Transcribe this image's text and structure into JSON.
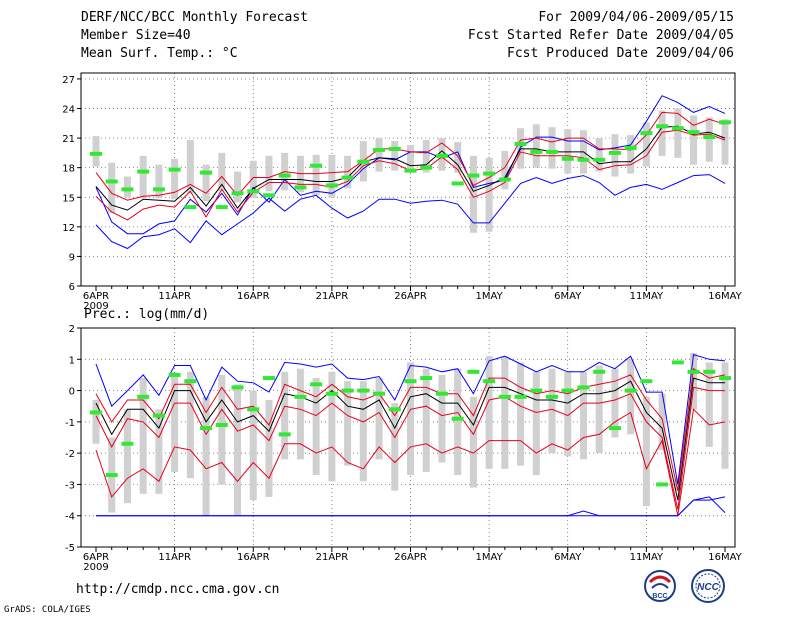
{
  "header": {
    "title": "DERF/NCC/BCC Monthly Forecast",
    "member_size": "Member Size=40",
    "variable": "Mean Surf. Temp.: °C",
    "period": "For 2009/04/06-2009/05/15",
    "refer_date": "Fcst Started Refer Date 2009/04/05",
    "produced_date": "Fcst Produced Date 2009/04/06"
  },
  "precip_title": "Prec.: log(mm/d)",
  "footer": {
    "url": "http://cmdp.ncc.cma.gov.cn",
    "credit": "GrADS: COLA/IGES",
    "logo_bcc": "BCC",
    "logo_ncc": "NCC"
  },
  "colors": {
    "envelope": "#0000ff",
    "spread": "#e8001c",
    "mean": "#000000",
    "box": "#d0d0d0",
    "obs": "#33e833",
    "grid": "#555555"
  },
  "chart_data": [
    {
      "type": "line",
      "title": "Mean Surf. Temp.: °C",
      "x_tick_labels": [
        "6APR",
        "11APR",
        "16APR",
        "21APR",
        "26APR",
        "1MAY",
        "6MAY",
        "11MAY",
        "16MAY"
      ],
      "x_sub_label": "2009",
      "y_ticks": [
        6,
        9,
        12,
        15,
        18,
        21,
        24,
        27
      ],
      "ylim": [
        6,
        27.6
      ],
      "days": 41,
      "series": [
        {
          "name": "max",
          "values": [
            16.0,
            12.5,
            11.3,
            11.3,
            12.3,
            12.6,
            14.8,
            13.5,
            15.4,
            13.2,
            16.0,
            14.5,
            16.8,
            15.2,
            15.6,
            15.4,
            16.3,
            17.9,
            19.0,
            18.8,
            19.6,
            19.6,
            19.0,
            19.6,
            16.0,
            16.4,
            16.7,
            20.1,
            21.1,
            21.1,
            20.7,
            20.7,
            19.8,
            20.0,
            20.3,
            22.7,
            25.3,
            24.6,
            23.6,
            24.2,
            23.5
          ]
        },
        {
          "name": "upper",
          "values": [
            17.5,
            15.4,
            14.7,
            15.1,
            15.2,
            15.5,
            16.3,
            15.4,
            17.1,
            15.2,
            17.0,
            17.0,
            17.6,
            17.4,
            17.4,
            17.5,
            17.6,
            18.7,
            19.9,
            19.9,
            19.6,
            19.5,
            20.5,
            19.2,
            16.2,
            17.0,
            18.0,
            20.8,
            21.0,
            20.6,
            21.0,
            21.0,
            19.9,
            19.9,
            19.8,
            21.3,
            23.6,
            23.5,
            22.3,
            22.9,
            22.4
          ]
        },
        {
          "name": "mean",
          "values": [
            16.1,
            14.2,
            13.7,
            14.8,
            14.7,
            14.6,
            16.0,
            14.1,
            16.3,
            13.9,
            15.9,
            16.8,
            16.8,
            16.8,
            16.6,
            16.6,
            17.0,
            18.6,
            19.0,
            18.9,
            18.2,
            18.3,
            19.7,
            18.3,
            15.6,
            16.2,
            17.0,
            19.9,
            19.9,
            19.6,
            19.6,
            19.6,
            18.4,
            18.6,
            18.6,
            19.9,
            22.1,
            22.2,
            21.4,
            21.6,
            21.0
          ]
        },
        {
          "name": "lower",
          "values": [
            15.1,
            13.5,
            12.7,
            13.8,
            14.2,
            14.0,
            15.6,
            13.0,
            15.8,
            13.5,
            15.5,
            16.5,
            16.5,
            16.3,
            16.3,
            16.0,
            16.6,
            18.2,
            18.7,
            18.4,
            17.7,
            17.9,
            19.1,
            17.8,
            15.0,
            15.6,
            16.5,
            19.6,
            19.2,
            19.2,
            19.2,
            19.0,
            17.8,
            18.2,
            18.3,
            19.2,
            21.6,
            21.8,
            21.3,
            21.4,
            20.8
          ]
        },
        {
          "name": "min",
          "values": [
            12.2,
            10.5,
            9.8,
            11.0,
            11.2,
            11.8,
            10.4,
            12.6,
            11.2,
            12.3,
            13.4,
            14.9,
            13.6,
            14.8,
            15.2,
            13.9,
            12.9,
            13.6,
            14.8,
            14.8,
            14.4,
            14.6,
            14.7,
            14.3,
            12.4,
            12.4,
            14.4,
            16.4,
            17.0,
            16.4,
            16.9,
            17.2,
            16.5,
            15.2,
            16.0,
            16.3,
            15.8,
            16.5,
            17.2,
            17.3,
            16.4
          ]
        }
      ],
      "boxes": {
        "low": [
          18.1,
          13.4,
          15.0,
          14.9,
          14.9,
          14.8,
          15.4,
          14.6,
          15.6,
          14.5,
          14.9,
          15.6,
          15.7,
          15.5,
          15.2,
          15.0,
          15.9,
          16.6,
          17.6,
          17.7,
          17.6,
          17.5,
          17.7,
          17.5,
          11.4,
          11.5,
          15.8,
          17.9,
          18.0,
          17.9,
          17.4,
          17.4,
          17.6,
          17.1,
          17.4,
          18.1,
          19.2,
          19.0,
          18.3,
          18.6,
          18.3
        ],
        "high": [
          21.2,
          18.5,
          17.1,
          19.2,
          18.3,
          18.9,
          20.8,
          18.3,
          19.5,
          17.6,
          18.7,
          19.2,
          19.5,
          19.2,
          19.3,
          19.3,
          19.2,
          20.7,
          21.0,
          20.7,
          20.3,
          20.8,
          21.0,
          20.6,
          19.2,
          19.0,
          19.7,
          22.0,
          22.4,
          22.1,
          21.9,
          21.8,
          21.0,
          21.4,
          21.3,
          22.6,
          23.8,
          24.0,
          23.3,
          23.1,
          22.9
        ]
      },
      "observed": [
        19.4,
        16.6,
        15.8,
        17.6,
        15.8,
        17.8,
        14.0,
        17.5,
        14.0,
        15.4,
        15.6,
        15.2,
        17.2,
        16.0,
        18.2,
        16.2,
        17.0,
        18.6,
        19.8,
        19.9,
        17.7,
        18.0,
        19.2,
        16.4,
        17.2,
        17.4,
        16.8,
        20.4,
        19.6,
        19.6,
        18.9,
        18.8,
        18.8,
        19.5,
        20.0,
        21.5,
        22.2,
        22.0,
        21.6,
        21.1,
        22.6
      ]
    },
    {
      "type": "line",
      "title": "Prec.: log(mm/d)",
      "x_tick_labels": [
        "6APR",
        "11APR",
        "16APR",
        "21APR",
        "26APR",
        "1MAY",
        "6MAY",
        "11MAY",
        "16MAY"
      ],
      "x_sub_label": "2009",
      "y_ticks": [
        -5,
        -4,
        -3,
        -2,
        -1,
        0,
        1,
        2
      ],
      "ylim": [
        -5,
        2
      ],
      "days": 41,
      "series": [
        {
          "name": "max",
          "values": [
            0.85,
            -0.5,
            0.0,
            0.5,
            -0.15,
            0.8,
            0.8,
            -0.3,
            0.75,
            0.3,
            0.25,
            -0.05,
            0.9,
            0.85,
            0.75,
            0.85,
            0.4,
            0.35,
            0.45,
            -0.3,
            0.8,
            0.75,
            0.6,
            0.7,
            -0.1,
            0.95,
            1.1,
            0.85,
            0.6,
            0.8,
            0.6,
            0.6,
            0.9,
            0.7,
            1.1,
            -0.05,
            -0.05,
            -3.0,
            1.15,
            1.0,
            0.95
          ]
        },
        {
          "name": "upper",
          "values": [
            -0.1,
            -1.0,
            -0.3,
            -0.3,
            -0.9,
            0.2,
            0.2,
            -0.7,
            0.1,
            -0.6,
            -0.5,
            -1.1,
            0.2,
            0.0,
            -0.2,
            0.2,
            -0.2,
            -0.3,
            -0.1,
            -0.8,
            0.1,
            0.1,
            -0.1,
            -0.1,
            -0.8,
            0.4,
            0.4,
            0.1,
            -0.1,
            0.0,
            -0.1,
            0.1,
            0.2,
            0.3,
            0.5,
            -0.3,
            -0.9,
            -3.2,
            0.7,
            0.4,
            0.5
          ]
        },
        {
          "name": "mean",
          "values": [
            -0.4,
            -1.4,
            -0.6,
            -0.6,
            -1.2,
            0.0,
            0.0,
            -1.0,
            -0.3,
            -1.0,
            -0.8,
            -1.3,
            -0.1,
            -0.2,
            -0.4,
            0.0,
            -0.5,
            -0.6,
            -0.3,
            -1.2,
            -0.2,
            -0.1,
            -0.4,
            -0.4,
            -1.1,
            0.1,
            0.1,
            -0.1,
            -0.3,
            -0.3,
            -0.4,
            -0.1,
            -0.1,
            0.0,
            0.3,
            -0.7,
            -1.2,
            -3.5,
            0.4,
            0.25,
            0.25
          ]
        },
        {
          "name": "lower",
          "values": [
            -0.8,
            -1.8,
            -0.9,
            -1.0,
            -1.5,
            -0.4,
            -0.4,
            -1.4,
            -0.6,
            -1.3,
            -1.1,
            -1.6,
            -0.5,
            -0.6,
            -0.8,
            -0.4,
            -0.8,
            -1.0,
            -0.7,
            -1.5,
            -0.6,
            -0.5,
            -0.8,
            -0.7,
            -1.4,
            -0.3,
            -0.2,
            -0.5,
            -0.7,
            -0.6,
            -0.8,
            -0.4,
            -0.4,
            -0.3,
            -0.1,
            -1.0,
            -1.5,
            -3.8,
            0.1,
            0.0,
            0.0
          ]
        },
        {
          "name": "lower2",
          "values": [
            -1.9,
            -3.4,
            -2.8,
            -2.5,
            -2.9,
            -1.8,
            -1.9,
            -2.5,
            -2.3,
            -2.9,
            -2.3,
            -2.8,
            -1.7,
            -1.7,
            -2.0,
            -1.8,
            -2.3,
            -2.5,
            -1.8,
            -2.3,
            -1.8,
            -1.7,
            -2.0,
            -1.8,
            -2.0,
            -1.6,
            -1.6,
            -1.6,
            -2.0,
            -1.7,
            -1.9,
            -1.5,
            -1.4,
            -1.0,
            -0.7,
            -2.5,
            -1.6,
            -4.0,
            -0.6,
            -1.1,
            -1.0
          ]
        },
        {
          "name": "min",
          "values": [
            -4.0,
            -4.0,
            -4.0,
            -4.0,
            -4.0,
            -4.0,
            -4.0,
            -4.0,
            -4.0,
            -4.0,
            -4.0,
            -4.0,
            -4.0,
            -4.0,
            -4.0,
            -4.0,
            -4.0,
            -4.0,
            -4.0,
            -4.0,
            -4.0,
            -4.0,
            -4.0,
            -4.0,
            -4.0,
            -4.0,
            -4.0,
            -4.0,
            -4.0,
            -4.0,
            -4.0,
            -3.85,
            -4.0,
            -4.0,
            -4.0,
            -4.0,
            -4.0,
            -4.0,
            -3.5,
            -3.5,
            -3.4
          ]
        },
        {
          "name": "end",
          "values": [
            -4.0,
            -4.0,
            -4.0,
            -4.0,
            -4.0,
            -4.0,
            -4.0,
            -4.0,
            -4.0,
            -4.0,
            -4.0,
            -4.0,
            -4.0,
            -4.0,
            -4.0,
            -4.0,
            -4.0,
            -4.0,
            -4.0,
            -4.0,
            -4.0,
            -4.0,
            -4.0,
            -4.0,
            -4.0,
            -4.0,
            -4.0,
            -4.0,
            -4.0,
            -4.0,
            -4.0,
            -4.0,
            -4.0,
            -4.0,
            -4.0,
            -4.0,
            -4.0,
            -4.0,
            -3.5,
            -3.4,
            -3.9
          ]
        }
      ],
      "boxes": {
        "low": [
          -1.7,
          -3.9,
          -3.6,
          -3.3,
          -3.3,
          -2.6,
          -2.8,
          -4.0,
          -3.0,
          -4.0,
          -3.5,
          -3.4,
          -2.2,
          -2.2,
          -2.7,
          -2.9,
          -2.4,
          -2.9,
          -2.2,
          -3.2,
          -2.7,
          -2.6,
          -2.3,
          -2.7,
          -3.1,
          -2.5,
          -2.5,
          -2.4,
          -2.7,
          -2.0,
          -2.1,
          -2.2,
          -2.0,
          -1.5,
          -1.4,
          -3.7,
          -1.9,
          -3.2,
          -0.6,
          -1.8,
          -2.5
        ],
        "high": [
          -0.3,
          -1.5,
          -0.6,
          0.4,
          -0.6,
          0.5,
          0.6,
          -0.2,
          0.5,
          0.2,
          0.0,
          -0.3,
          0.6,
          0.7,
          0.4,
          0.6,
          0.3,
          0.3,
          0.4,
          -0.4,
          0.9,
          0.7,
          0.5,
          0.7,
          -0.2,
          1.1,
          1.1,
          0.9,
          0.6,
          0.7,
          0.6,
          0.6,
          0.8,
          0.7,
          1.0,
          -0.2,
          -0.1,
          -2.8,
          1.2,
          0.9,
          0.9
        ]
      },
      "observed": [
        -0.7,
        -2.7,
        -1.7,
        -0.2,
        -0.8,
        0.5,
        0.3,
        -1.2,
        -1.1,
        0.1,
        -0.6,
        0.4,
        -1.4,
        -0.2,
        0.2,
        -0.1,
        0.0,
        0.0,
        -0.1,
        -0.6,
        0.3,
        0.4,
        -0.1,
        -0.9,
        0.6,
        0.3,
        -0.2,
        -0.2,
        0.0,
        -0.2,
        0.0,
        0.1,
        0.6,
        -1.2,
        0.0,
        0.3,
        -3.0,
        0.9,
        0.6,
        0.6,
        0.4
      ]
    }
  ]
}
